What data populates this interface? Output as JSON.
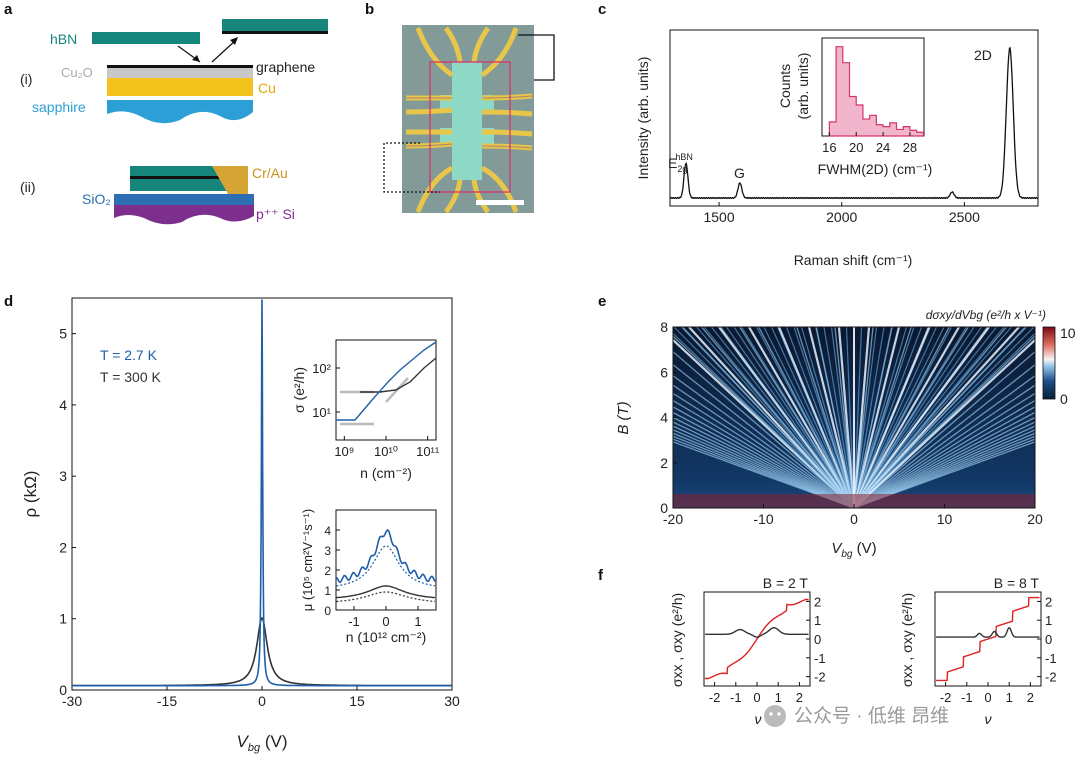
{
  "panels": {
    "a": "a",
    "b": "b",
    "c": "c",
    "d": "d",
    "e": "e",
    "f": "f"
  },
  "panel_a": {
    "hbn": "hBN",
    "cu2o": "Cu₂O",
    "graphene": "graphene",
    "cu": "Cu",
    "sapphire": "sapphire",
    "i": "(i)",
    "ii": "(ii)",
    "crau": "Cr/Au",
    "sio2": "SiO₂",
    "psi": "p⁺⁺ Si"
  },
  "colors": {
    "teal": "#16857c",
    "gold": "#f4c21c",
    "blue": "#2c9fd6",
    "purple": "#7d2f8e",
    "crau": "#d4a435",
    "sio2": "#2e6fb3",
    "accent": "#1f5fa8",
    "red": "#e02020",
    "pink": "#d6336c"
  },
  "chart_data": [
    {
      "id": "c",
      "type": "line",
      "title": "",
      "xlabel": "Raman shift (cm⁻¹)",
      "ylabel": "Intensity (arb. units)",
      "xlim": [
        1300,
        2800
      ],
      "xticks": [
        1500,
        2000,
        2500
      ],
      "peaks": [
        {
          "x": 1365,
          "label": "E2g hBN",
          "height": 0.23
        },
        {
          "x": 1585,
          "label": "G",
          "height": 0.1
        },
        {
          "x": 2450,
          "label": "",
          "height": 0.04
        },
        {
          "x": 2685,
          "label": "2D",
          "height": 1.0
        }
      ],
      "labels": {
        "e2g": "E",
        "e2g_sub": "2g",
        "e2g_sup": "hBN",
        "g": "G",
        "twod": "2D"
      },
      "inset": {
        "type": "histogram",
        "xlabel": "FWHM(2D) (cm⁻¹)",
        "ylabel1": "Counts",
        "ylabel2": "(arb. units)",
        "xticks": [
          16,
          20,
          24,
          28
        ],
        "bins": [
          16,
          17,
          18,
          19,
          20,
          21,
          22,
          23,
          24,
          25,
          26,
          27,
          28,
          29
        ],
        "counts": [
          0.15,
          0.95,
          0.78,
          0.42,
          0.33,
          0.18,
          0.22,
          0.12,
          0.1,
          0.14,
          0.07,
          0.1,
          0.06,
          0.04
        ]
      }
    },
    {
      "id": "d",
      "type": "line",
      "xlabel": "V",
      "xlabel_sub": "bg",
      "xlabel_unit": " (V)",
      "ylabel": "ρ (kΩ)",
      "xlim": [
        -30,
        30
      ],
      "ylim": [
        0,
        5.5
      ],
      "xticks": [
        -30,
        -15,
        0,
        15,
        30
      ],
      "yticks": [
        0,
        1,
        2,
        3,
        4,
        5
      ],
      "series": [
        {
          "name": "T = 2.7 K",
          "color": "#1f5fa8",
          "peak": 5.42,
          "width": 0.12
        },
        {
          "name": "T = 300 K",
          "color": "#333333",
          "peak": 0.95,
          "width": 1.0
        }
      ],
      "legend": [
        "T = 2.7 K",
        "T = 300 K"
      ],
      "inset1": {
        "xlabel": "n (cm⁻²)",
        "ylabel": "σ (e²/h)",
        "xticks": [
          "10⁹",
          "10¹⁰",
          "10¹¹"
        ],
        "yticks": [
          "10¹",
          "10²"
        ]
      },
      "inset2": {
        "xlabel": "n (10¹² cm⁻²)",
        "ylabel": "μ (10⁵ cm²V⁻¹s⁻¹)",
        "xticks": [
          "-1",
          "0",
          "1"
        ],
        "yticks": [
          "0",
          "1",
          "2",
          "3",
          "4"
        ]
      }
    },
    {
      "id": "e",
      "type": "heatmap",
      "xlabel": "V",
      "xlabel_sub": "bg",
      "xlabel_unit": " (V)",
      "ylabel": "B (T)",
      "xlim": [
        -20,
        20
      ],
      "ylim": [
        0,
        8
      ],
      "xticks": [
        -20,
        -10,
        0,
        10,
        20
      ],
      "yticks": [
        0,
        2,
        4,
        6,
        8
      ],
      "colorbar": {
        "label": "dσxy/dVbg (e²/h x V⁻¹)",
        "min": 0,
        "max": 10
      }
    },
    {
      "id": "f1",
      "type": "line",
      "title": "B = 2 T",
      "ylabel": "σxx , σxy (e²/h)",
      "xlabel": "ν",
      "xticks": [
        -2,
        -1,
        0,
        1,
        2
      ],
      "yticks": [
        -2,
        -1,
        0,
        1,
        2
      ],
      "xlim": [
        -2.5,
        2.5
      ],
      "ylim": [
        -2.5,
        2.5
      ]
    },
    {
      "id": "f2",
      "type": "line",
      "title": "B = 8 T",
      "ylabel": "σxx , σxy (e²/h)",
      "xlabel": "ν",
      "xticks": [
        -2,
        -1,
        0,
        1,
        2
      ],
      "yticks": [
        -2,
        -1,
        0,
        1,
        2
      ],
      "xlim": [
        -2.5,
        2.5
      ],
      "ylim": [
        -2.5,
        2.5
      ]
    }
  ],
  "watermark": "公众号 · 低维 昂维"
}
